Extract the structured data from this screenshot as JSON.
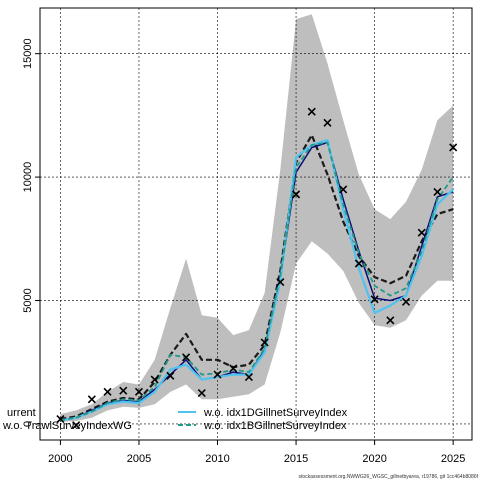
{
  "chart_data": {
    "type": "line",
    "title": "",
    "xlabel": "",
    "ylabel": "",
    "xlim": [
      1998.7,
      2026.2
    ],
    "ylim": [
      -650,
      16850
    ],
    "x_ticks": [
      2000,
      2005,
      2010,
      2015,
      2020,
      2025
    ],
    "y_ticks": [
      0,
      5000,
      10000,
      15000
    ],
    "grid": true,
    "x": [
      2000,
      2001,
      2002,
      2003,
      2004,
      2005,
      2006,
      2007,
      2008,
      2009,
      2010,
      2011,
      2012,
      2013,
      2014,
      2015,
      2016,
      2017,
      2018,
      2019,
      2020,
      2021,
      2022,
      2023,
      2024,
      2025
    ],
    "band": {
      "upper": [
        400,
        550,
        800,
        1300,
        1700,
        1600,
        2600,
        4700,
        6700,
        4400,
        4300,
        3600,
        3800,
        5300,
        10300,
        16400,
        16600,
        14600,
        12300,
        10100,
        8700,
        8300,
        9000,
        10300,
        12300,
        12900
      ],
      "lower": [
        80,
        120,
        250,
        550,
        700,
        650,
        800,
        1300,
        1600,
        1000,
        1000,
        1100,
        1200,
        1600,
        3700,
        6500,
        7400,
        6900,
        6200,
        4900,
        4000,
        3900,
        4200,
        5200,
        5800,
        5800
      ],
      "color": "#bebebe"
    },
    "observations": {
      "x": [
        2000,
        2001,
        2002,
        2003,
        2004,
        2005,
        2006,
        2007,
        2008,
        2009,
        2010,
        2011,
        2012,
        2013,
        2014,
        2015,
        2016,
        2017,
        2018,
        2019,
        2020,
        2021,
        2022,
        2023,
        2024,
        2025
      ],
      "y": [
        200,
        -50,
        1000,
        1300,
        1350,
        1300,
        1800,
        1950,
        2700,
        1250,
        2000,
        2250,
        1900,
        3300,
        5750,
        9300,
        12650,
        12200,
        9500,
        6500,
        5050,
        4200,
        4950,
        7750,
        9400,
        11200
      ],
      "marker": "x"
    },
    "series": [
      {
        "name": "",
        "color": "#1a1a1a",
        "dash": "6,3",
        "width": 2.2,
        "values": [
          200,
          300,
          600,
          900,
          1050,
          1000,
          1700,
          2800,
          3650,
          2600,
          2600,
          2300,
          2400,
          3200,
          6200,
          10600,
          11700,
          10100,
          8200,
          6800,
          5950,
          5700,
          6000,
          7400,
          8500,
          8700
        ]
      },
      {
        "name": "w.o. TrawlSurveyIndexWG",
        "color": "#0d0d7a",
        "dash": "",
        "width": 1.5,
        "values": [
          150,
          250,
          550,
          850,
          950,
          900,
          1400,
          2000,
          2600,
          1800,
          1900,
          2100,
          2000,
          3000,
          5900,
          10200,
          11200,
          11400,
          9100,
          7000,
          5100,
          5000,
          5200,
          7200,
          9200,
          9400
        ]
      },
      {
        "name": "w.o. idx1DGillnetSurveyIndex",
        "color": "#4fc3ef",
        "dash": "",
        "width": 2.2,
        "values": [
          150,
          250,
          500,
          800,
          900,
          850,
          1300,
          2200,
          2400,
          1800,
          1900,
          2000,
          2000,
          2900,
          5800,
          10800,
          11300,
          11500,
          8700,
          6300,
          4500,
          4800,
          5200,
          6800,
          8900,
          9500
        ]
      },
      {
        "name": "w.o. idx1BGillnetSurveyIndex",
        "color": "#1e9a8a",
        "dash": "5,3",
        "width": 1.8,
        "values": [
          150,
          250,
          500,
          850,
          1000,
          950,
          1500,
          2800,
          2700,
          2000,
          2050,
          2200,
          2100,
          3050,
          6000,
          10400,
          11300,
          11400,
          8900,
          6900,
          5600,
          5200,
          5500,
          7000,
          9100,
          10000
        ]
      }
    ],
    "legend": {
      "placement": "bottom-left",
      "entries": [
        {
          "label": "urrent",
          "color": "#1a1a1a",
          "dash": "6,3"
        },
        {
          "label": "w.o. idx1DGillnetSurveyIndex",
          "color": "#4fc3ef",
          "dash": ""
        },
        {
          "label": "w.o. TrawlSurveyIndexWG",
          "color": "#0d0d7a",
          "dash": ""
        },
        {
          "label": "w.o. idx1BGillnetSurveyIndex",
          "color": "#1e9a8a",
          "dash": "5,3"
        }
      ]
    },
    "credit": "stockassessment.org.NWWG26_WGSC_gillnetbyarea, r19786, git 1cc464b8086f"
  }
}
